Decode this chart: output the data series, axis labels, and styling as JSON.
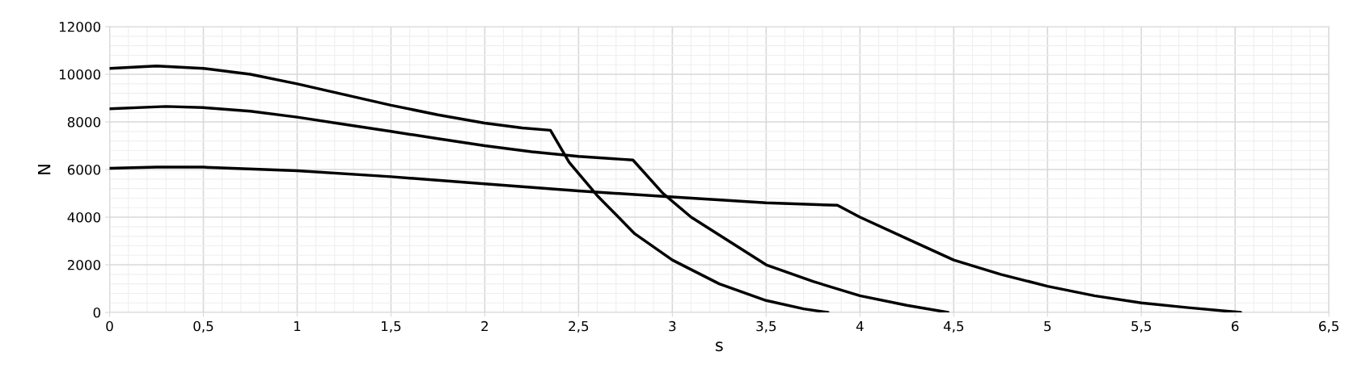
{
  "chart_data": {
    "type": "line",
    "xlabel": "s",
    "ylabel": "N",
    "xlim": [
      0,
      6.5
    ],
    "xticks": [
      0,
      {
        "value": 0.5,
        "label": "0,5"
      },
      1,
      {
        "value": 1.5,
        "label": "1,5"
      },
      2,
      {
        "value": 2.5,
        "label": "2,5"
      },
      3,
      {
        "value": 3.5,
        "label": "3,5"
      },
      4,
      {
        "value": 4.5,
        "label": "4,5"
      },
      5,
      {
        "value": 5.5,
        "label": "5,5"
      },
      6,
      {
        "value": 6.5,
        "label": "6,5"
      }
    ],
    "ylim": [
      0,
      12000
    ],
    "yticks": [
      0,
      2000,
      4000,
      6000,
      8000,
      10000,
      12000
    ],
    "grid": true,
    "marker": "none",
    "line_style": "solid",
    "series": [
      {
        "color": "#000000",
        "x": [
          0,
          0.25,
          0.5,
          0.75,
          1,
          1.25,
          1.5,
          1.75,
          2,
          2.2,
          2.35,
          2.45,
          2.6,
          2.8,
          3,
          3.25,
          3.5,
          3.7,
          3.83
        ],
        "values": [
          10250,
          10350,
          10250,
          10000,
          9600,
          9150,
          8700,
          8300,
          7950,
          7750,
          7650,
          6300,
          4900,
          3300,
          2200,
          1200,
          500,
          150,
          0
        ]
      },
      {
        "color": "#000000",
        "x": [
          0,
          0.3,
          0.5,
          0.75,
          1,
          1.25,
          1.5,
          1.75,
          2,
          2.25,
          2.5,
          2.79,
          2.95,
          3.1,
          3.3,
          3.5,
          3.75,
          4,
          4.25,
          4.47
        ],
        "values": [
          8550,
          8650,
          8600,
          8450,
          8200,
          7900,
          7600,
          7300,
          7000,
          6750,
          6550,
          6400,
          5000,
          4000,
          3000,
          2000,
          1300,
          700,
          300,
          0
        ]
      },
      {
        "color": "#000000",
        "x": [
          0,
          0.25,
          0.5,
          1,
          1.5,
          2,
          2.5,
          3,
          3.5,
          3.88,
          4,
          4.25,
          4.5,
          4.75,
          5,
          5.25,
          5.5,
          5.75,
          6.03
        ],
        "values": [
          6050,
          6100,
          6100,
          5950,
          5700,
          5400,
          5100,
          4850,
          4600,
          4500,
          4000,
          3100,
          2200,
          1600,
          1100,
          700,
          400,
          200,
          0
        ]
      }
    ]
  }
}
